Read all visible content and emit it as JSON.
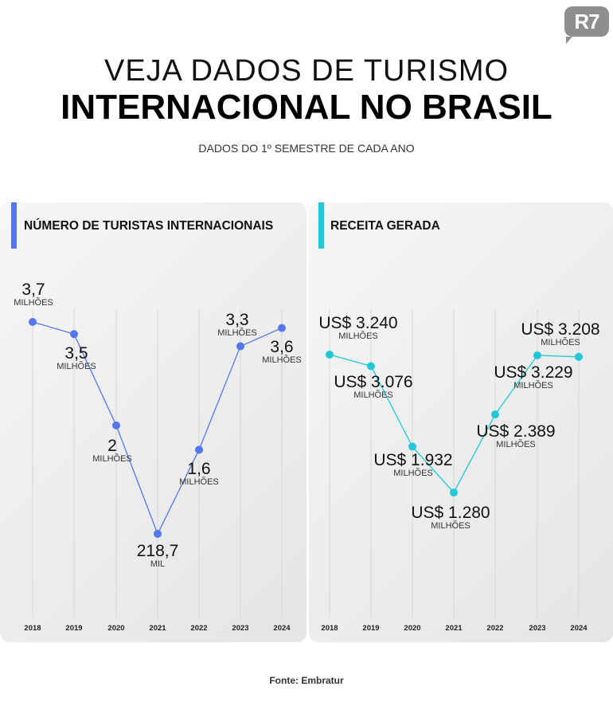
{
  "logo": "R7",
  "title_line1": "VEJA DADOS DE TURISMO",
  "title_line2": "INTERNACIONAL NO BRASIL",
  "subtitle": "DADOS DO 1º SEMESTRE DE CADA ANO",
  "source": "Fonte: Embratur",
  "chart_data": [
    {
      "type": "line",
      "title": "NÚMERO DE TURISTAS INTERNACIONAIS",
      "color": "#5577ee",
      "categories": [
        "2018",
        "2019",
        "2020",
        "2021",
        "2022",
        "2023",
        "2024"
      ],
      "values_millions": [
        3.7,
        3.5,
        2,
        0.2187,
        1.6,
        3.3,
        3.6
      ],
      "labels": [
        "3,7",
        "3,5",
        "2",
        "218,7",
        "1,6",
        "3,3",
        "3,6"
      ],
      "units": [
        "MILHÕES",
        "MILHÕES",
        "MILHÕES",
        "MIL",
        "MILHÕES",
        "MILHÕES",
        "MILHÕES"
      ]
    },
    {
      "type": "line",
      "title": "RECEITA GERADA",
      "color": "#22c8d8",
      "categories": [
        "2018",
        "2019",
        "2020",
        "2021",
        "2022",
        "2023",
        "2024"
      ],
      "values": [
        3240,
        3076,
        1932,
        1280,
        2389,
        3229,
        3208
      ],
      "labels": [
        "US$ 3.240",
        "US$ 3.076",
        "US$ 1.932",
        "US$ 1.280",
        "US$ 2.389",
        "US$ 3.229",
        "US$ 3.208"
      ],
      "units": [
        "MILHÕES",
        "MILHÕES",
        "MILHÕES",
        "MILHÕES",
        "MILHÕES",
        "MILHÕES",
        "MILHÕES"
      ]
    }
  ]
}
